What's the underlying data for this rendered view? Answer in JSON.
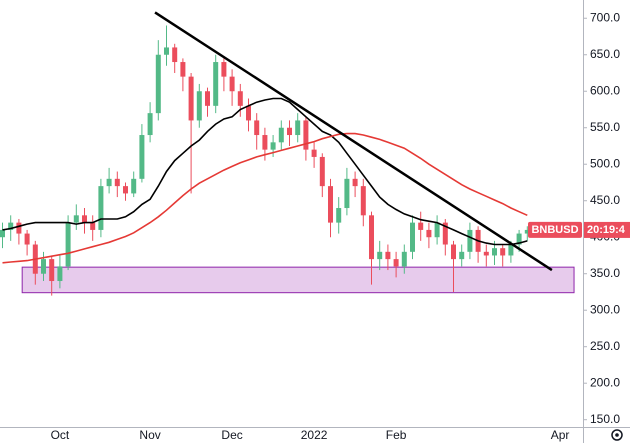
{
  "chart_data": {
    "type": "candlestick",
    "categories": [
      null,
      null,
      null,
      null,
      null,
      null,
      null,
      "Oct",
      null,
      null,
      null,
      null,
      null,
      null,
      null,
      null,
      null,
      null,
      "Nov",
      null,
      null,
      null,
      null,
      null,
      null,
      null,
      null,
      null,
      "Dec",
      null,
      null,
      null,
      null,
      null,
      null,
      null,
      null,
      null,
      "2022",
      null,
      null,
      null,
      null,
      null,
      null,
      null,
      null,
      null,
      "Feb",
      null,
      null,
      null,
      null,
      null,
      null,
      null,
      null,
      null,
      null,
      null,
      null,
      null,
      null,
      null,
      null,
      null,
      null,
      null,
      "Apr",
      null
    ],
    "series": [
      {
        "name": "BNBUSD",
        "open": [
          400,
          410,
          420,
          405,
          390,
          350,
          370,
          340,
          360,
          420,
          430,
          420,
          410,
          470,
          480,
          470,
          460,
          480,
          540,
          570,
          650,
          660,
          640,
          620,
          560,
          600,
          580,
          640,
          620,
          600,
          580,
          560,
          540,
          520,
          530,
          550,
          540,
          560,
          520,
          510,
          470,
          420,
          440,
          480,
          470,
          430,
          370,
          380,
          370,
          360,
          380,
          420,
          410,
          400,
          420,
          390,
          370,
          380,
          410,
          380,
          375,
          385,
          375,
          390,
          405,
          null,
          null,
          null,
          null,
          null
        ],
        "high": [
          420,
          430,
          425,
          410,
          395,
          380,
          375,
          375,
          430,
          445,
          440,
          430,
          480,
          495,
          490,
          475,
          490,
          555,
          585,
          670,
          690,
          665,
          645,
          625,
          610,
          605,
          650,
          645,
          630,
          610,
          590,
          570,
          550,
          540,
          560,
          560,
          570,
          565,
          530,
          515,
          480,
          455,
          495,
          490,
          480,
          435,
          395,
          390,
          380,
          390,
          430,
          435,
          420,
          430,
          425,
          395,
          390,
          420,
          415,
          390,
          395,
          390,
          395,
          410,
          415,
          null,
          null,
          null,
          null,
          null
        ],
        "low": [
          385,
          395,
          390,
          375,
          335,
          340,
          320,
          330,
          355,
          410,
          405,
          395,
          400,
          460,
          455,
          450,
          455,
          475,
          530,
          560,
          635,
          625,
          600,
          460,
          550,
          565,
          570,
          600,
          580,
          565,
          545,
          520,
          505,
          510,
          520,
          525,
          530,
          505,
          495,
          455,
          400,
          405,
          430,
          455,
          415,
          335,
          355,
          355,
          345,
          350,
          370,
          395,
          385,
          390,
          375,
          325,
          360,
          370,
          365,
          360,
          362,
          360,
          365,
          380,
          395,
          null,
          null,
          null,
          null,
          null
        ],
        "close": [
          410,
          420,
          405,
          390,
          350,
          370,
          340,
          360,
          420,
          430,
          420,
          410,
          470,
          480,
          470,
          460,
          480,
          540,
          570,
          650,
          660,
          640,
          620,
          560,
          600,
          580,
          640,
          620,
          600,
          580,
          560,
          540,
          520,
          530,
          550,
          540,
          560,
          520,
          510,
          470,
          420,
          440,
          480,
          470,
          430,
          370,
          380,
          370,
          360,
          380,
          420,
          410,
          400,
          420,
          390,
          370,
          380,
          410,
          380,
          375,
          385,
          375,
          390,
          405,
          410,
          null,
          null,
          null,
          null,
          null
        ]
      }
    ],
    "up_color": "#53b987",
    "down_color": "#eb4d5c",
    "lines": [
      {
        "color": "#000000",
        "values": [
          410,
          412,
          415,
          418,
          420,
          420,
          420,
          420,
          420,
          418,
          420,
          420,
          425,
          425,
          425,
          428,
          435,
          445,
          452,
          470,
          490,
          505,
          515,
          525,
          533,
          545,
          555,
          562,
          565,
          575,
          580,
          585,
          588,
          590,
          590,
          585,
          575,
          565,
          555,
          545,
          540,
          530,
          515,
          500,
          485,
          470,
          455,
          445,
          438,
          432,
          428,
          424,
          422,
          420,
          415,
          410,
          405,
          400,
          395,
          392,
          390,
          390,
          390,
          392,
          395,
          null,
          null,
          null,
          null,
          null
        ]
      },
      {
        "color": "#e53935",
        "values": [
          365,
          366,
          367,
          368,
          370,
          372,
          374,
          376,
          378,
          381,
          384,
          387,
          390,
          393,
          397,
          401,
          406,
          413,
          420,
          428,
          437,
          447,
          457,
          466,
          474,
          480,
          486,
          492,
          497,
          502,
          506,
          510,
          513,
          516,
          519,
          522,
          525,
          528,
          531,
          535,
          538,
          541,
          542,
          542,
          540,
          537,
          534,
          530,
          526,
          522,
          515,
          508,
          500,
          493,
          486,
          479,
          472,
          466,
          461,
          456,
          451,
          446,
          440,
          435,
          430,
          null,
          null,
          null,
          null,
          null
        ]
      }
    ],
    "trendline": {
      "color": "#000000",
      "x": [
        18.6,
        67
      ],
      "y": [
        708,
        355
      ]
    },
    "zone": {
      "color": "#e1bee7",
      "border": "#8e24aa",
      "x": [
        2.4,
        69.7
      ],
      "y": [
        324,
        359
      ]
    },
    "countdown": "20:19:4",
    "ylim": [
      140,
      725
    ],
    "yticks": [
      {
        "value": 150,
        "label": "150.0"
      },
      {
        "value": 200,
        "label": "200.0"
      },
      {
        "value": 250,
        "label": "250.0"
      },
      {
        "value": 300,
        "label": "300.0"
      },
      {
        "value": 350,
        "label": "350.0"
      },
      {
        "value": 400,
        "label": "400.0"
      },
      {
        "value": 450,
        "label": "450.0"
      },
      {
        "value": 500,
        "label": "500.0"
      },
      {
        "value": 550,
        "label": "550.0"
      },
      {
        "value": 600,
        "label": "600.0"
      },
      {
        "value": 650,
        "label": "650.0"
      },
      {
        "value": 700,
        "label": "700.0"
      }
    ]
  }
}
